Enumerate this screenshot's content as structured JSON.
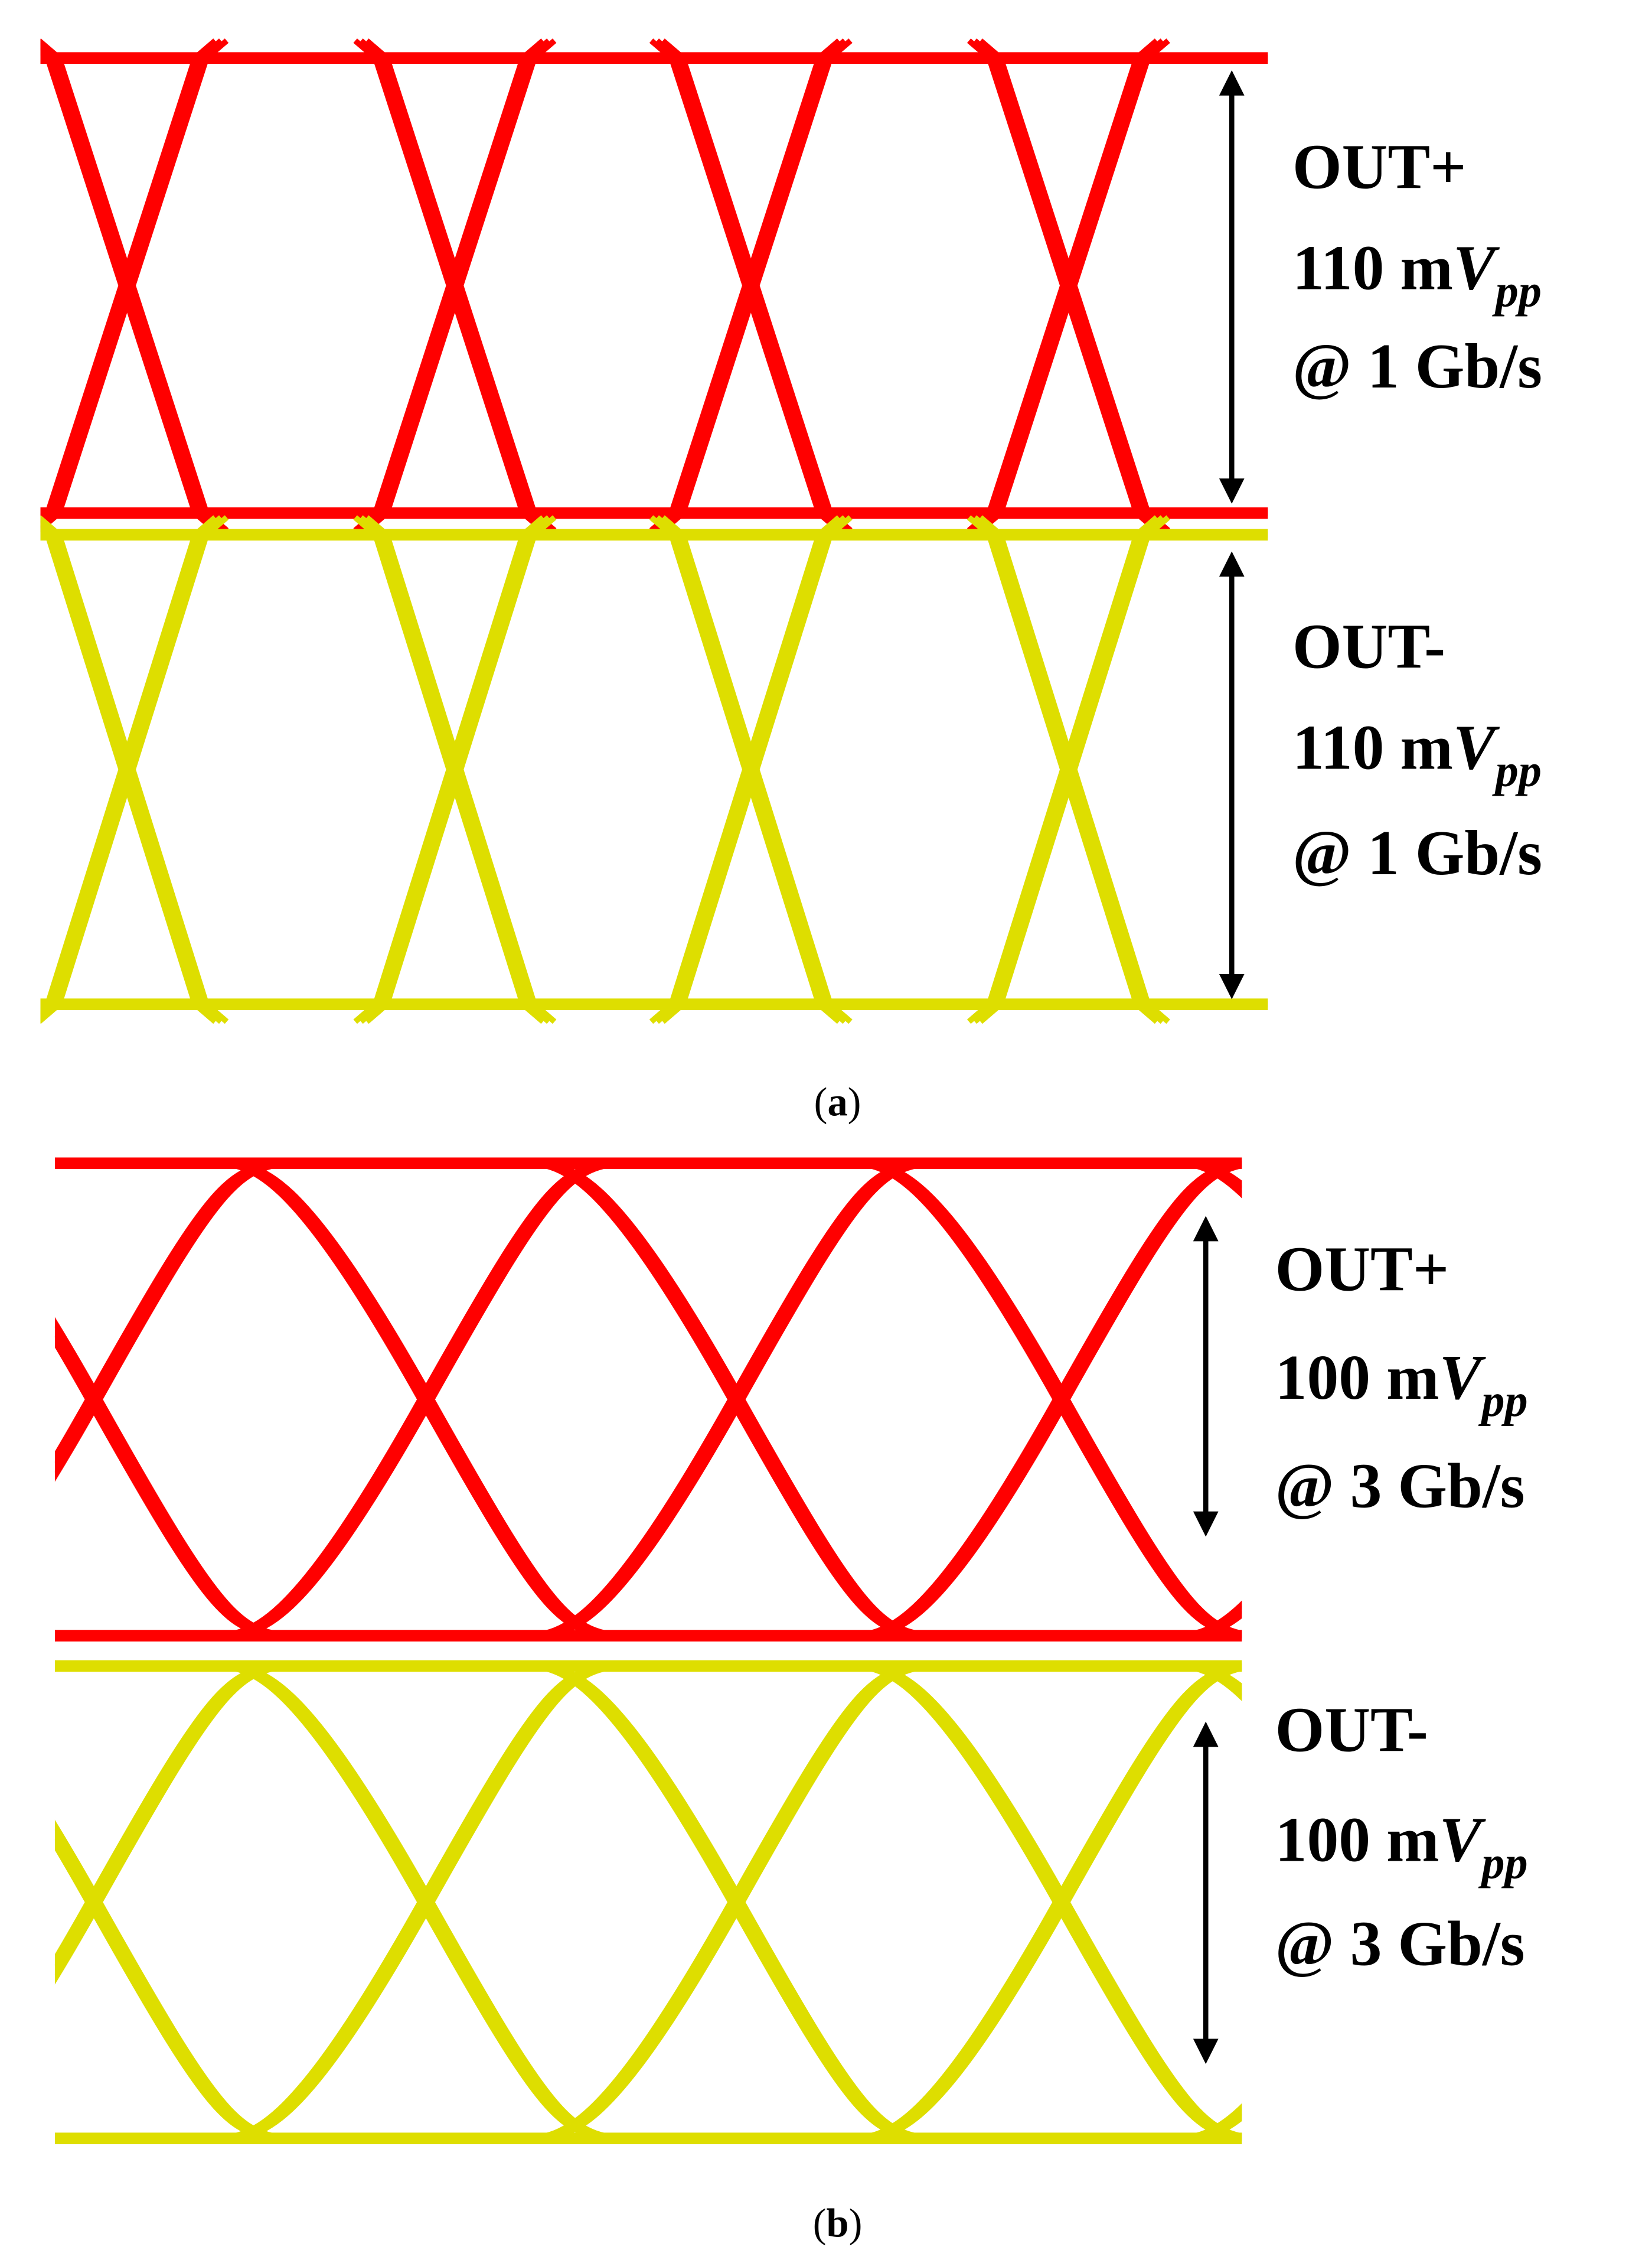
{
  "panels": [
    {
      "caption": {
        "open": "(",
        "letter": "a",
        "close": ")"
      },
      "traces": [
        {
          "name": "OUT+",
          "color": "#ff0000",
          "amplitude": {
            "prefix": "110 m",
            "symbol": "V",
            "subscript": "pp"
          },
          "rate": "@ 1 Gb/s"
        },
        {
          "name": "OUT-",
          "color": "#dede00",
          "amplitude": {
            "prefix": "110 m",
            "symbol": "V",
            "subscript": "pp"
          },
          "rate": "@ 1 Gb/s"
        }
      ]
    },
    {
      "caption": {
        "open": "(",
        "letter": "b",
        "close": ")"
      },
      "traces": [
        {
          "name": "OUT+",
          "color": "#ff0000",
          "amplitude": {
            "prefix": "100 m",
            "symbol": "V",
            "subscript": "pp"
          },
          "rate": "@ 3 Gb/s"
        },
        {
          "name": "OUT-",
          "color": "#dede00",
          "amplitude": {
            "prefix": "100 m",
            "symbol": "V",
            "subscript": "pp"
          },
          "rate": "@ 3 Gb/s"
        }
      ]
    }
  ]
}
